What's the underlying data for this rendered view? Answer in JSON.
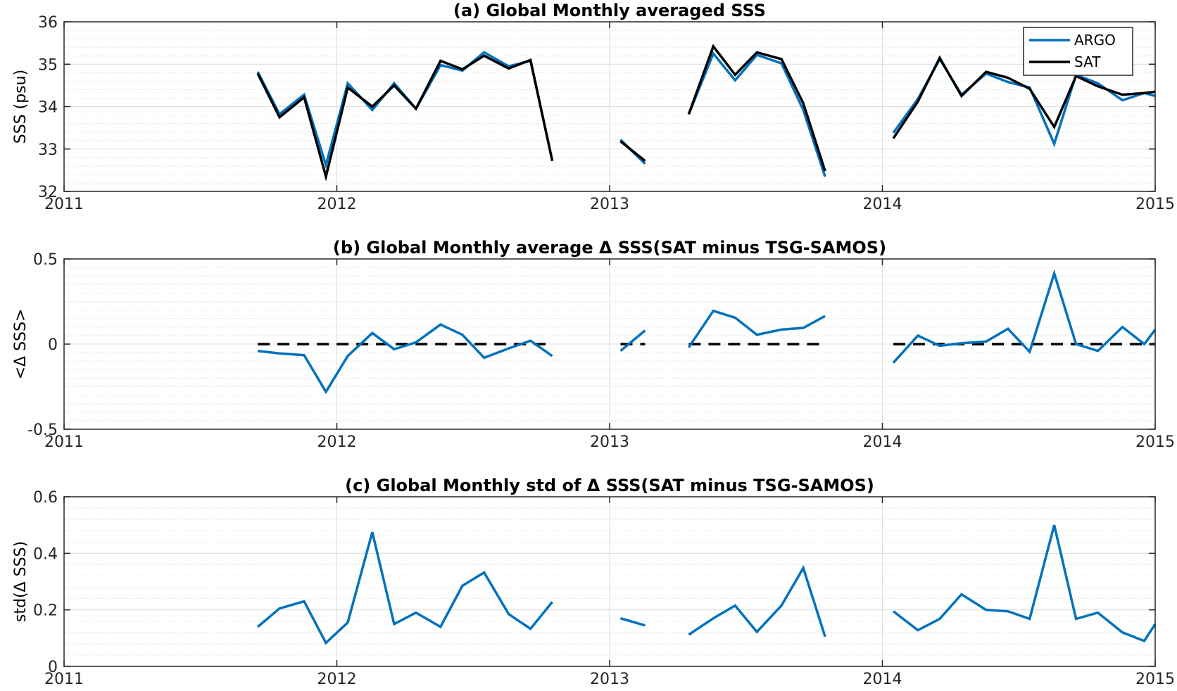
{
  "chart_data": [
    {
      "type": "line",
      "title": "(a) Global Monthly averaged SSS",
      "ylabel": "SSS (psu)",
      "xlim": [
        2011,
        2015
      ],
      "ylim": [
        32,
        36
      ],
      "xticks": [
        "2011",
        "2012",
        "2013",
        "2014",
        "2015"
      ],
      "yticks": [
        "32",
        "33",
        "34",
        "35",
        "36"
      ],
      "grid": true,
      "legend": "top-right",
      "series": [
        {
          "name": "ARGO",
          "color": "#0072BD",
          "segments": [
            {
              "x": [
                2011.71,
                2011.79,
                2011.88,
                2011.96,
                2012.04,
                2012.13,
                2012.21,
                2012.29,
                2012.38,
                2012.46,
                2012.54,
                2012.63,
                2012.71,
                2012.79
              ],
              "y": [
                34.82,
                33.82,
                34.28,
                32.62,
                34.55,
                33.92,
                34.55,
                33.95,
                34.98,
                34.85,
                35.28,
                34.95,
                35.08,
                32.72
              ]
            },
            {
              "x": [
                2013.04,
                2013.13
              ],
              "y": [
                33.22,
                32.65
              ]
            },
            {
              "x": [
                2013.29,
                2013.38,
                2013.46,
                2013.54,
                2013.63,
                2013.71,
                2013.79
              ],
              "y": [
                33.82,
                35.25,
                34.62,
                35.22,
                35.02,
                33.92,
                32.35
              ]
            },
            {
              "x": [
                2014.04,
                2014.13,
                2014.21,
                2014.29,
                2014.38,
                2014.46,
                2014.54,
                2014.63,
                2014.71,
                2014.79,
                2014.88,
                2014.96,
                2015.0
              ],
              "y": [
                33.38,
                34.18,
                35.12,
                34.28,
                34.78,
                34.58,
                34.45,
                33.12,
                34.75,
                34.55,
                34.15,
                34.32,
                34.25
              ]
            }
          ]
        },
        {
          "name": "SAT",
          "color": "#000000",
          "segments": [
            {
              "x": [
                2011.71,
                2011.79,
                2011.88,
                2011.96,
                2012.04,
                2012.13,
                2012.21,
                2012.29,
                2012.38,
                2012.46,
                2012.54,
                2012.63,
                2012.71,
                2012.79
              ],
              "y": [
                34.78,
                33.75,
                34.22,
                32.35,
                34.45,
                34.0,
                34.5,
                33.95,
                35.08,
                34.88,
                35.2,
                34.9,
                35.1,
                32.72
              ]
            },
            {
              "x": [
                2013.04,
                2013.13
              ],
              "y": [
                33.18,
                32.72
              ]
            },
            {
              "x": [
                2013.29,
                2013.38,
                2013.46,
                2013.54,
                2013.63,
                2013.71,
                2013.79
              ],
              "y": [
                33.82,
                35.42,
                34.75,
                35.28,
                35.12,
                34.08,
                32.48
              ]
            },
            {
              "x": [
                2014.04,
                2014.13,
                2014.21,
                2014.29,
                2014.38,
                2014.46,
                2014.54,
                2014.63,
                2014.71,
                2014.79,
                2014.88,
                2014.96,
                2015.0
              ],
              "y": [
                33.25,
                34.12,
                35.15,
                34.25,
                34.82,
                34.68,
                34.42,
                33.52,
                34.72,
                34.48,
                34.28,
                34.32,
                34.35
              ]
            }
          ]
        }
      ]
    },
    {
      "type": "line",
      "title": "(b) Global Monthly average Δ SSS(SAT minus TSG-SAMOS)",
      "ylabel": "<Δ SSS>",
      "xlim": [
        2011,
        2015
      ],
      "ylim": [
        -0.5,
        0.5
      ],
      "xticks": [
        "2011",
        "2012",
        "2013",
        "2014",
        "2015"
      ],
      "yticks": [
        "-0.5",
        "0",
        "0.5"
      ],
      "grid": true,
      "series": [
        {
          "color": "#0072BD",
          "segments": [
            {
              "x": [
                2011.71,
                2011.79,
                2011.88,
                2011.96,
                2012.04,
                2012.13,
                2012.21,
                2012.29,
                2012.38,
                2012.46,
                2012.54,
                2012.63,
                2012.71,
                2012.79
              ],
              "y": [
                -0.04,
                -0.055,
                -0.065,
                -0.28,
                -0.07,
                0.065,
                -0.03,
                0.01,
                0.115,
                0.055,
                -0.08,
                -0.025,
                0.02,
                -0.07
              ]
            },
            {
              "x": [
                2013.04,
                2013.13
              ],
              "y": [
                -0.04,
                0.08
              ]
            },
            {
              "x": [
                2013.29,
                2013.38,
                2013.46,
                2013.54,
                2013.63,
                2013.71,
                2013.79
              ],
              "y": [
                -0.02,
                0.195,
                0.155,
                0.055,
                0.085,
                0.095,
                0.165
              ]
            },
            {
              "x": [
                2014.04,
                2014.13,
                2014.21,
                2014.29,
                2014.38,
                2014.46,
                2014.54,
                2014.63,
                2014.71,
                2014.79,
                2014.88,
                2014.96,
                2015.0
              ],
              "y": [
                -0.11,
                0.05,
                -0.01,
                0.005,
                0.015,
                0.09,
                -0.045,
                0.415,
                0.0,
                -0.04,
                0.1,
                0.0,
                0.085
              ]
            }
          ]
        }
      ],
      "zero_line": {
        "style": "dashed",
        "color": "#000000",
        "segments": [
          [
            2011.71,
            2012.79
          ],
          [
            2013.04,
            2013.13
          ],
          [
            2013.29,
            2013.79
          ],
          [
            2014.04,
            2015.0
          ]
        ]
      }
    },
    {
      "type": "line",
      "title": "(c) Global Monthly std of Δ SSS(SAT minus TSG-SAMOS)",
      "ylabel": "std(Δ SSS)",
      "xlim": [
        2011,
        2015
      ],
      "ylim": [
        0,
        0.6
      ],
      "xticks": [
        "2011",
        "2012",
        "2013",
        "2014",
        "2015"
      ],
      "yticks": [
        "0",
        "0.2",
        "0.4",
        "0.6"
      ],
      "grid": true,
      "series": [
        {
          "color": "#0072BD",
          "segments": [
            {
              "x": [
                2011.71,
                2011.79,
                2011.88,
                2011.96,
                2012.04,
                2012.13,
                2012.21,
                2012.29,
                2012.38,
                2012.46,
                2012.54,
                2012.63,
                2012.71,
                2012.79
              ],
              "y": [
                0.14,
                0.205,
                0.23,
                0.083,
                0.155,
                0.475,
                0.15,
                0.19,
                0.14,
                0.285,
                0.332,
                0.185,
                0.133,
                0.228
              ]
            },
            {
              "x": [
                2013.04,
                2013.13
              ],
              "y": [
                0.17,
                0.145
              ]
            },
            {
              "x": [
                2013.29,
                2013.38,
                2013.46,
                2013.54,
                2013.63,
                2013.71,
                2013.79
              ],
              "y": [
                0.112,
                0.17,
                0.215,
                0.122,
                0.215,
                0.348,
                0.105
              ]
            },
            {
              "x": [
                2014.04,
                2014.13,
                2014.21,
                2014.29,
                2014.38,
                2014.46,
                2014.54,
                2014.63,
                2014.71,
                2014.79,
                2014.88,
                2014.96,
                2015.0
              ],
              "y": [
                0.195,
                0.128,
                0.168,
                0.255,
                0.2,
                0.195,
                0.168,
                0.5,
                0.168,
                0.19,
                0.12,
                0.09,
                0.15
              ]
            }
          ]
        }
      ]
    }
  ]
}
